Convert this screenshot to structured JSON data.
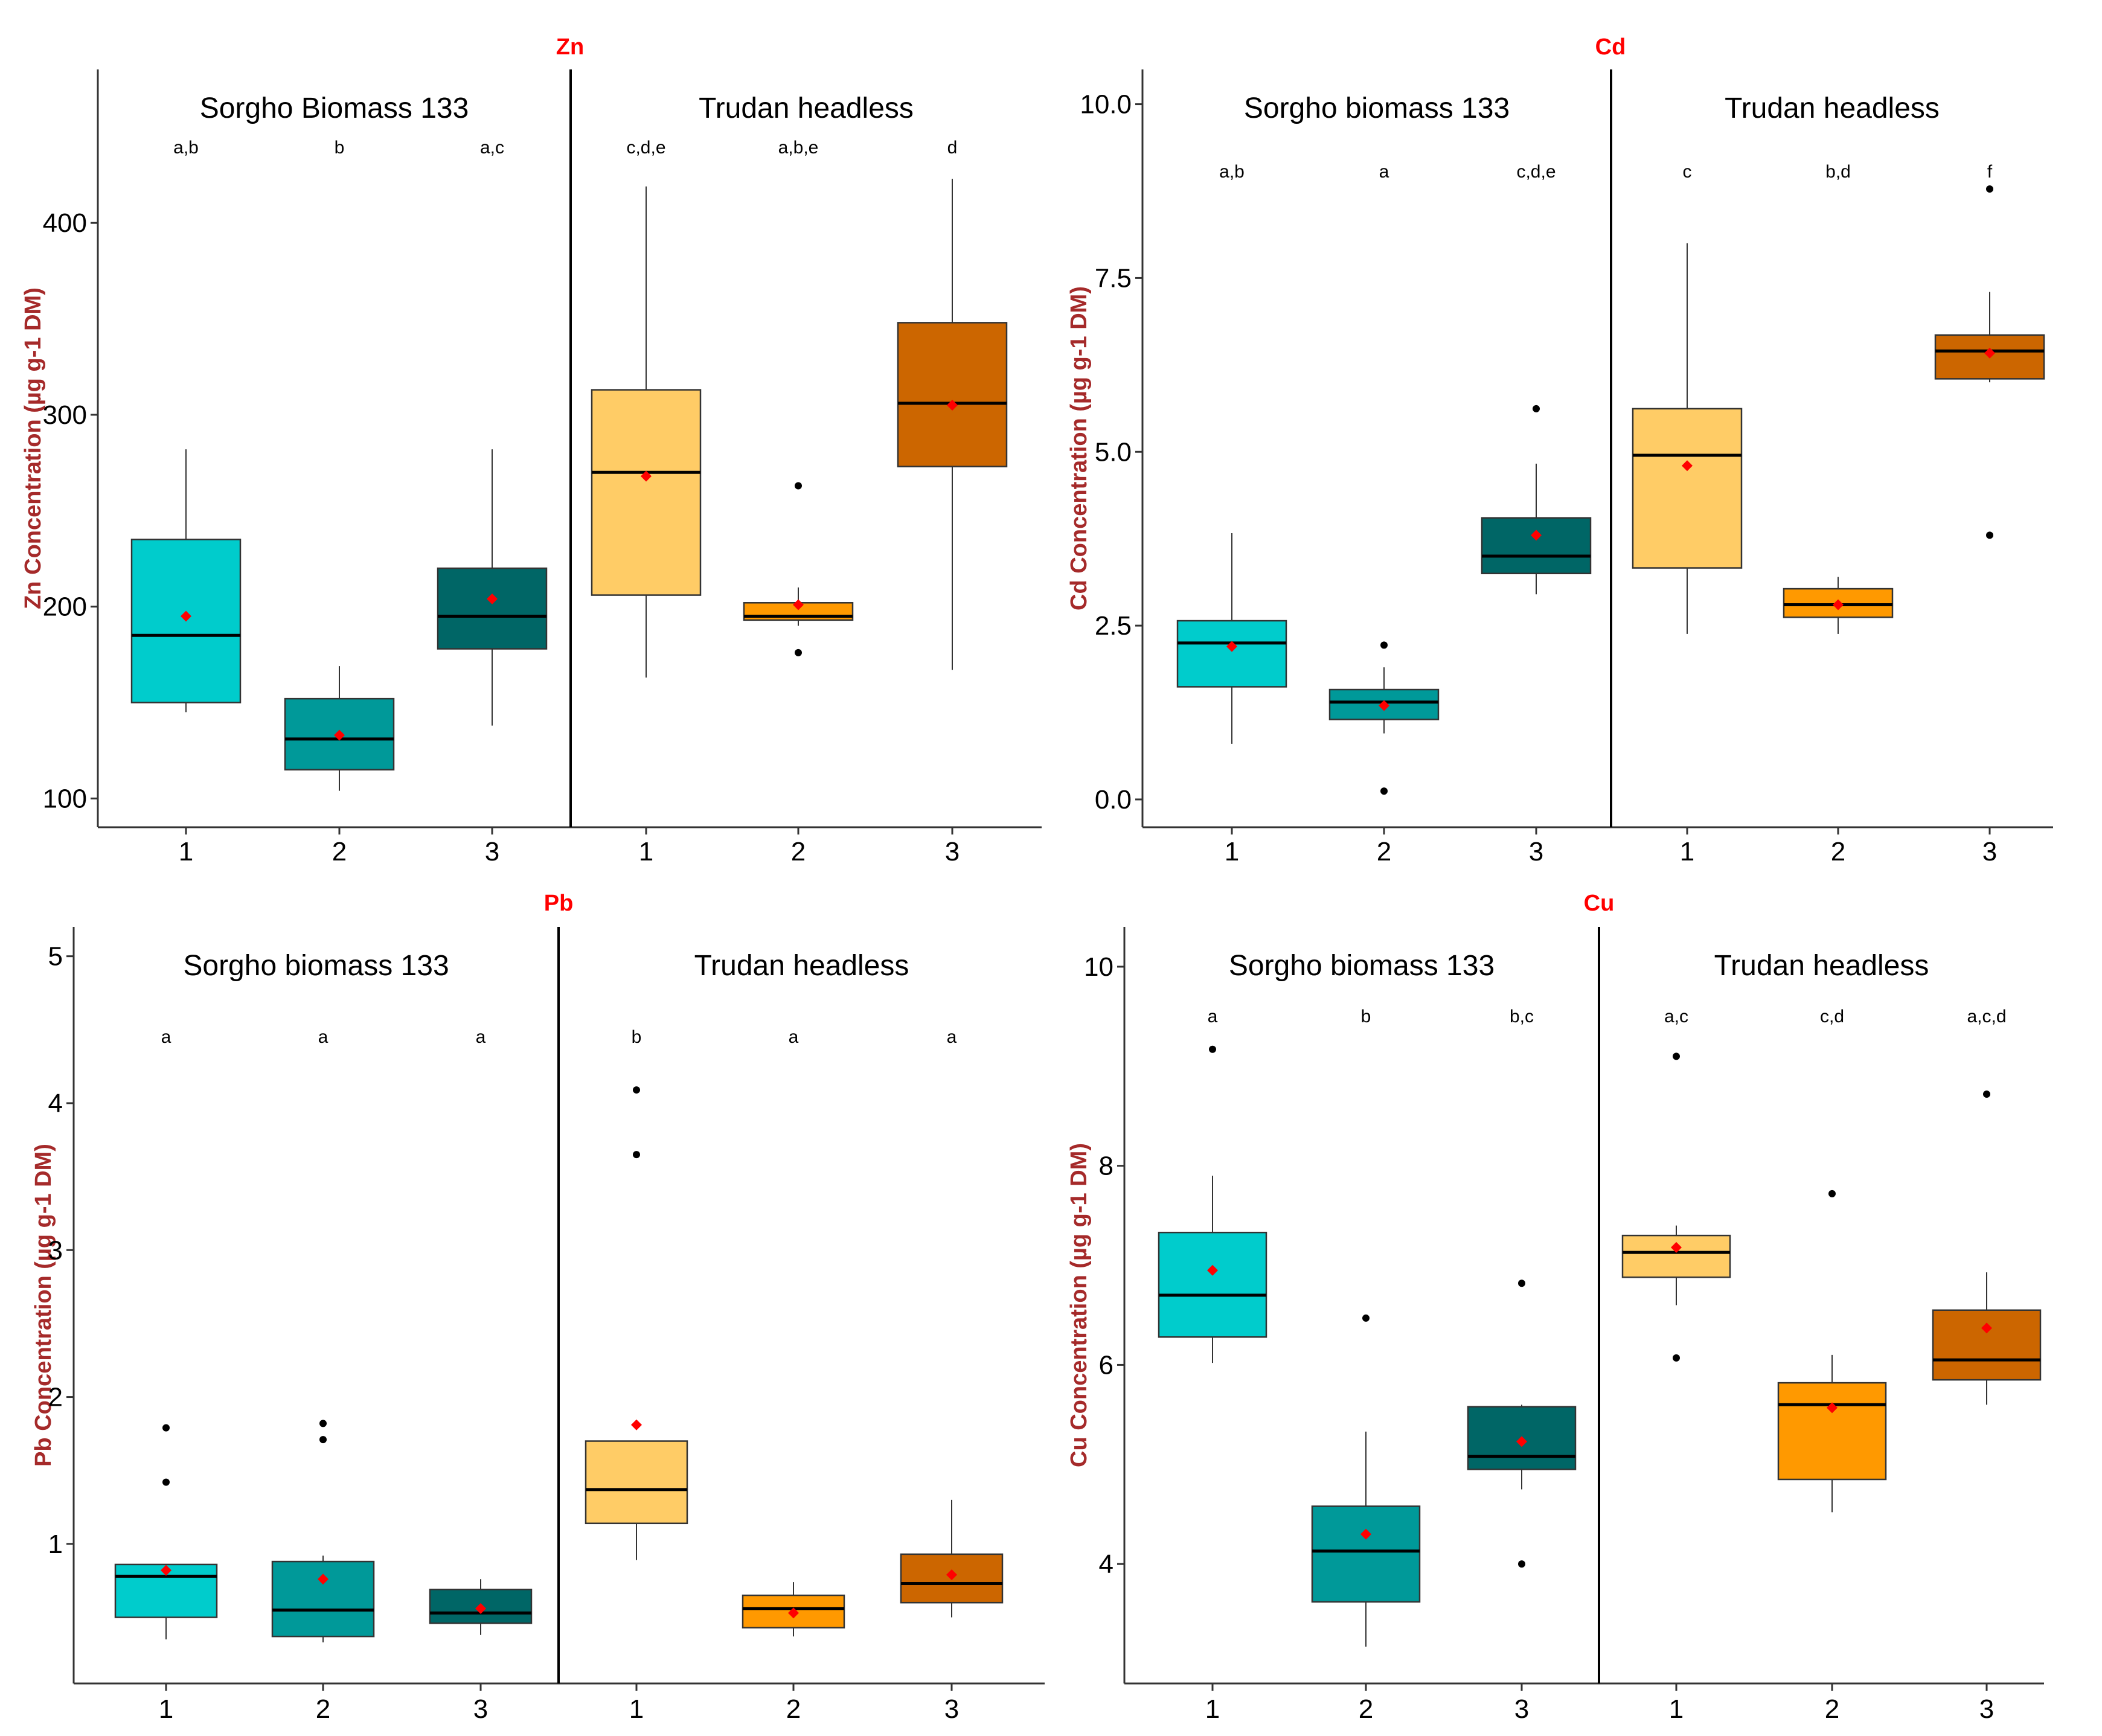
{
  "colors": {
    "box": [
      "#00cccc",
      "#009999",
      "#006666",
      "#ffcc66",
      "#ff9900",
      "#cc6600"
    ],
    "mean": "#ff0000",
    "title": "#ff0000",
    "ylabel": "#a52a2a"
  },
  "chart_data": [
    {
      "type": "boxplot",
      "title": "Zn",
      "ylabel": "Zn Concentration (µg g-1 DM)",
      "ylim": [
        85,
        480
      ],
      "yticks": [
        100,
        200,
        300,
        400
      ],
      "ytick_labels": [
        "100",
        "200",
        "300",
        "400"
      ],
      "xtick_labels": [
        "1",
        "2",
        "3",
        "1",
        "2",
        "3"
      ],
      "facets": [
        "Sorgho Biomass 133",
        "Trudan headless"
      ],
      "groups": [
        {
          "facet": 0,
          "x": "1",
          "letters": "a,b",
          "whisker_low": 145,
          "q1": 150,
          "median": 185,
          "q3": 235,
          "whisker_high": 282,
          "mean": 195,
          "outliers": []
        },
        {
          "facet": 0,
          "x": "2",
          "letters": "b",
          "whisker_low": 104,
          "q1": 115,
          "median": 131,
          "q3": 152,
          "whisker_high": 169,
          "mean": 133,
          "outliers": []
        },
        {
          "facet": 0,
          "x": "3",
          "letters": "a,c",
          "whisker_low": 138,
          "q1": 178,
          "median": 195,
          "q3": 220,
          "whisker_high": 282,
          "mean": 204,
          "outliers": []
        },
        {
          "facet": 1,
          "x": "1",
          "letters": "c,d,e",
          "whisker_low": 163,
          "q1": 206,
          "median": 270,
          "q3": 313,
          "whisker_high": 419,
          "mean": 268,
          "outliers": []
        },
        {
          "facet": 1,
          "x": "2",
          "letters": "a,b,e",
          "whisker_low": 190,
          "q1": 193,
          "median": 195,
          "q3": 202,
          "whisker_high": 210,
          "mean": 201,
          "outliers": [
            176,
            263
          ]
        },
        {
          "facet": 1,
          "x": "3",
          "letters": "d",
          "whisker_low": 167,
          "q1": 273,
          "median": 306,
          "q3": 348,
          "whisker_high": 423,
          "mean": 305,
          "outliers": []
        }
      ]
    },
    {
      "type": "boxplot",
      "title": "Cd",
      "ylabel": "Cd Concentration (µg g-1 DM)",
      "ylim": [
        -0.4,
        10.5
      ],
      "yticks": [
        0.0,
        2.5,
        5.0,
        7.5,
        10.0
      ],
      "ytick_labels": [
        "0.0",
        "2.5",
        "5.0",
        "7.5",
        "10.0"
      ],
      "xtick_labels": [
        "1",
        "2",
        "3",
        "1",
        "2",
        "3"
      ],
      "facets": [
        "Sorgho biomass 133",
        "Trudan headless"
      ],
      "groups": [
        {
          "facet": 0,
          "x": "1",
          "letters": "a,b",
          "whisker_low": 0.8,
          "q1": 1.62,
          "median": 2.25,
          "q3": 2.57,
          "whisker_high": 3.83,
          "mean": 2.2,
          "outliers": []
        },
        {
          "facet": 0,
          "x": "2",
          "letters": "a",
          "whisker_low": 0.95,
          "q1": 1.15,
          "median": 1.4,
          "q3": 1.58,
          "whisker_high": 1.9,
          "mean": 1.35,
          "outliers": [
            0.12,
            2.22
          ]
        },
        {
          "facet": 0,
          "x": "3",
          "letters": "c,d,e",
          "whisker_low": 2.95,
          "q1": 3.25,
          "median": 3.5,
          "q3": 4.05,
          "whisker_high": 4.83,
          "mean": 3.8,
          "outliers": [
            5.62
          ]
        },
        {
          "facet": 1,
          "x": "1",
          "letters": "c",
          "whisker_low": 2.38,
          "q1": 3.33,
          "median": 4.95,
          "q3": 5.62,
          "whisker_high": 8.0,
          "mean": 4.8,
          "outliers": []
        },
        {
          "facet": 1,
          "x": "2",
          "letters": "b,d",
          "whisker_low": 2.38,
          "q1": 2.62,
          "median": 2.8,
          "q3": 3.03,
          "whisker_high": 3.2,
          "mean": 2.8,
          "outliers": []
        },
        {
          "facet": 1,
          "x": "3",
          "letters": "f",
          "whisker_low": 6.0,
          "q1": 6.05,
          "median": 6.45,
          "q3": 6.68,
          "whisker_high": 7.3,
          "mean": 6.42,
          "outliers": [
            3.8,
            8.78
          ]
        }
      ]
    },
    {
      "type": "boxplot",
      "title": "Pb",
      "ylabel": "Pb Concentration (µg g-1 DM)",
      "ylim": [
        0.05,
        5.2
      ],
      "yticks": [
        1,
        2,
        3,
        4,
        5
      ],
      "ytick_labels": [
        "1",
        "2",
        "3",
        "4",
        "5"
      ],
      "xtick_labels": [
        "1",
        "2",
        "3",
        "1",
        "2",
        "3"
      ],
      "facets": [
        "Sorgho biomass 133",
        "Trudan headless"
      ],
      "groups": [
        {
          "facet": 0,
          "x": "1",
          "letters": "a",
          "whisker_low": 0.35,
          "q1": 0.5,
          "median": 0.78,
          "q3": 0.86,
          "whisker_high": 0.86,
          "mean": 0.82,
          "outliers": [
            1.42,
            1.79
          ]
        },
        {
          "facet": 0,
          "x": "2",
          "letters": "a",
          "whisker_low": 0.33,
          "q1": 0.37,
          "median": 0.55,
          "q3": 0.88,
          "whisker_high": 0.92,
          "mean": 0.76,
          "outliers": [
            1.71,
            1.82
          ]
        },
        {
          "facet": 0,
          "x": "3",
          "letters": "a",
          "whisker_low": 0.38,
          "q1": 0.46,
          "median": 0.53,
          "q3": 0.69,
          "whisker_high": 0.76,
          "mean": 0.56,
          "outliers": []
        },
        {
          "facet": 1,
          "x": "1",
          "letters": "b",
          "whisker_low": 0.89,
          "q1": 1.14,
          "median": 1.37,
          "q3": 1.7,
          "whisker_high": 1.7,
          "mean": 1.81,
          "outliers": [
            3.65,
            4.09
          ]
        },
        {
          "facet": 1,
          "x": "2",
          "letters": "a",
          "whisker_low": 0.37,
          "q1": 0.43,
          "median": 0.56,
          "q3": 0.65,
          "whisker_high": 0.74,
          "mean": 0.53,
          "outliers": []
        },
        {
          "facet": 1,
          "x": "3",
          "letters": "a",
          "whisker_low": 0.5,
          "q1": 0.6,
          "median": 0.73,
          "q3": 0.93,
          "whisker_high": 1.3,
          "mean": 0.79,
          "outliers": []
        }
      ]
    },
    {
      "type": "boxplot",
      "title": "Cu",
      "ylabel": "Cu Concentration (µg g-1 DM)",
      "ylim": [
        2.8,
        10.4
      ],
      "yticks": [
        4,
        6,
        8,
        10
      ],
      "ytick_labels": [
        "4",
        "6",
        "8",
        "10"
      ],
      "xtick_labels": [
        "1",
        "2",
        "3",
        "1",
        "2",
        "3"
      ],
      "facets": [
        "Sorgho biomass 133",
        "Trudan headless"
      ],
      "groups": [
        {
          "facet": 0,
          "x": "1",
          "letters": "a",
          "whisker_low": 6.02,
          "q1": 6.28,
          "median": 6.7,
          "q3": 7.33,
          "whisker_high": 7.9,
          "mean": 6.95,
          "outliers": [
            9.17
          ]
        },
        {
          "facet": 0,
          "x": "2",
          "letters": "b",
          "whisker_low": 3.17,
          "q1": 3.62,
          "median": 4.13,
          "q3": 4.58,
          "whisker_high": 5.33,
          "mean": 4.3,
          "outliers": [
            6.47
          ]
        },
        {
          "facet": 0,
          "x": "3",
          "letters": "b,c",
          "whisker_low": 4.75,
          "q1": 4.95,
          "median": 5.08,
          "q3": 5.58,
          "whisker_high": 5.6,
          "mean": 5.23,
          "outliers": [
            4.0,
            6.82
          ]
        },
        {
          "facet": 1,
          "x": "1",
          "letters": "a,c",
          "whisker_low": 6.6,
          "q1": 6.88,
          "median": 7.13,
          "q3": 7.3,
          "whisker_high": 7.4,
          "mean": 7.18,
          "outliers": [
            6.07,
            9.1
          ]
        },
        {
          "facet": 1,
          "x": "2",
          "letters": "c,d",
          "whisker_low": 4.52,
          "q1": 4.85,
          "median": 5.6,
          "q3": 5.82,
          "whisker_high": 6.1,
          "mean": 5.57,
          "outliers": [
            7.72
          ]
        },
        {
          "facet": 1,
          "x": "3",
          "letters": "a,c,d",
          "whisker_low": 5.6,
          "q1": 5.85,
          "median": 6.05,
          "q3": 6.55,
          "whisker_high": 6.93,
          "mean": 6.37,
          "outliers": [
            8.72
          ]
        }
      ]
    }
  ]
}
